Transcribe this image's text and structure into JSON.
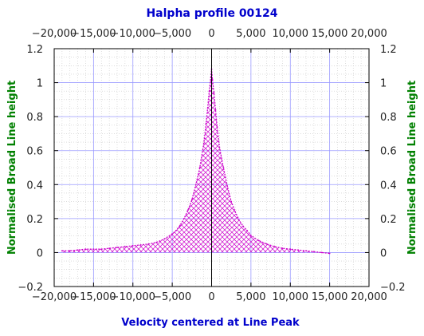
{
  "chart_data": {
    "type": "area",
    "title": "Halpha profile 00124",
    "xlabel": "Velocity centered at Line Peak",
    "ylabel": "Normalised Broad Line height",
    "xlim": [
      -20000,
      20000
    ],
    "ylim": [
      -0.2,
      1.2
    ],
    "x_ticks": [
      -20000,
      -15000,
      -10000,
      -5000,
      0,
      5000,
      10000,
      15000,
      20000
    ],
    "x_tick_labels": [
      "−20,000",
      "−15,000",
      "−10,000",
      "−5,000",
      "0",
      "5,000",
      "10,000",
      "15,000",
      "20,000"
    ],
    "y_ticks": [
      -0.2,
      0,
      0.2,
      0.4,
      0.6,
      0.8,
      1,
      1.2
    ],
    "y_tick_labels": [
      "−0.2",
      "0",
      "0.2",
      "0.4",
      "0.6",
      "0.8",
      "1",
      "1.2"
    ],
    "grid": true,
    "fill": "cross-hatch",
    "colors": {
      "series": "#cc00cc",
      "grid_major": "#9999ff",
      "grid_minor": "#c8c8c8",
      "zero_line": "#000000",
      "title": "#0000cc",
      "ylabel": "#008000"
    },
    "series": [
      {
        "x": [
          -19000,
          -18000,
          -17000,
          -16000,
          -15000,
          -14000,
          -13000,
          -12000,
          -11000,
          -10000,
          -9000,
          -8000,
          -7000,
          -6000,
          -5000,
          -4500,
          -4000,
          -3500,
          -3000,
          -2500,
          -2000,
          -1500,
          -1000,
          -700,
          -500,
          -300,
          -100,
          0,
          100,
          300,
          500,
          700,
          1000,
          1500,
          2000,
          2500,
          3000,
          3500,
          4000,
          4500,
          5000,
          6000,
          7000,
          8000,
          9000,
          10000,
          11000,
          12000,
          13000,
          14000,
          15000
        ],
        "y": [
          0.01,
          0.01,
          0.015,
          0.02,
          0.02,
          0.02,
          0.025,
          0.03,
          0.035,
          0.04,
          0.045,
          0.05,
          0.06,
          0.08,
          0.11,
          0.13,
          0.16,
          0.2,
          0.25,
          0.31,
          0.4,
          0.5,
          0.64,
          0.76,
          0.85,
          0.95,
          1.03,
          1.08,
          1.02,
          0.94,
          0.84,
          0.74,
          0.62,
          0.5,
          0.39,
          0.3,
          0.24,
          0.19,
          0.155,
          0.13,
          0.1,
          0.07,
          0.05,
          0.035,
          0.025,
          0.02,
          0.015,
          0.01,
          0.005,
          0.0,
          -0.005
        ]
      }
    ]
  }
}
